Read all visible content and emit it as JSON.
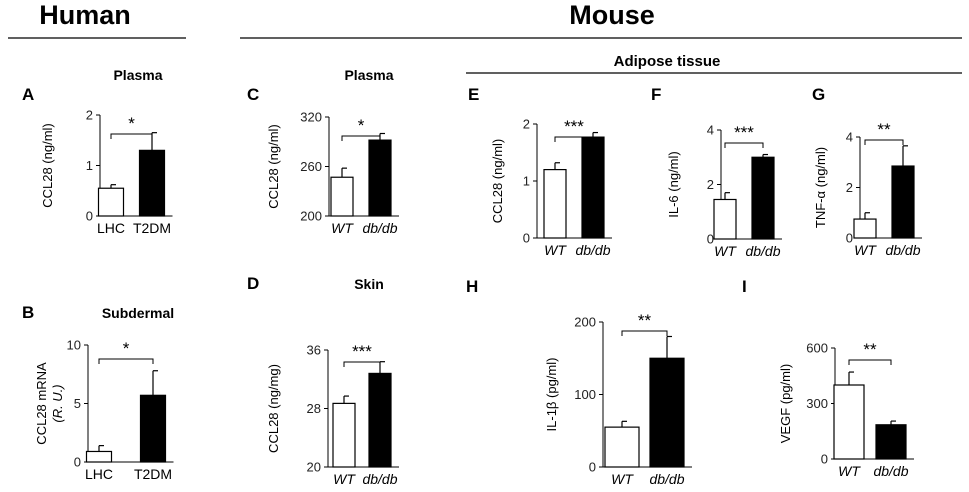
{
  "headers": {
    "left": "Human",
    "right": "Mouse",
    "sub": "Adipose tissue"
  },
  "chart_data": [
    {
      "panel": "A",
      "type": "bar",
      "title": "Plasma",
      "ylabel": "CCL28  (ng/ml)",
      "ylabel2": "",
      "categories": [
        "LHC",
        "T2DM"
      ],
      "italic_categories": false,
      "values": [
        0.55,
        1.3
      ],
      "errors": [
        0.07,
        0.35
      ],
      "ylim": [
        0,
        2
      ],
      "yticks": [
        0,
        1,
        2
      ],
      "significance": "*"
    },
    {
      "panel": "B",
      "type": "bar",
      "title": "Subdermal",
      "ylabel": "CCL28 mRNA",
      "ylabel2": "(R. U.)",
      "categories": [
        "LHC",
        "T2DM"
      ],
      "italic_categories": false,
      "values": [
        0.9,
        5.7
      ],
      "errors": [
        0.5,
        2.1
      ],
      "ylim": [
        0,
        10
      ],
      "yticks": [
        0,
        5,
        10
      ],
      "significance": "*"
    },
    {
      "panel": "C",
      "type": "bar",
      "title": "Plasma",
      "ylabel": "CCL28  (ng/ml)",
      "ylabel2": "",
      "categories": [
        "WT",
        "db/db"
      ],
      "italic_categories": true,
      "values": [
        247,
        292
      ],
      "errors": [
        11,
        8
      ],
      "ylim": [
        200,
        320
      ],
      "yticks": [
        200,
        260,
        320
      ],
      "significance": "*"
    },
    {
      "panel": "D",
      "type": "bar",
      "title": "Skin",
      "ylabel": "CCL28  (ng/mg)",
      "ylabel2": "",
      "categories": [
        "WT",
        "db/db"
      ],
      "italic_categories": true,
      "values": [
        28.7,
        32.8
      ],
      "errors": [
        1.0,
        1.6
      ],
      "ylim": [
        20,
        36
      ],
      "yticks": [
        20,
        28,
        36
      ],
      "significance": "***"
    },
    {
      "panel": "E",
      "type": "bar",
      "title": "",
      "ylabel": "CCL28  (ng/ml)",
      "ylabel2": "",
      "categories": [
        "WT",
        "db/db"
      ],
      "italic_categories": true,
      "values": [
        1.2,
        1.77
      ],
      "errors": [
        0.12,
        0.08
      ],
      "ylim": [
        0,
        2
      ],
      "yticks": [
        0,
        1,
        2
      ],
      "significance": "***"
    },
    {
      "panel": "F",
      "type": "bar",
      "title": "",
      "ylabel": "IL-6  (ng/ml)",
      "ylabel2": "",
      "categories": [
        "WT",
        "db/db"
      ],
      "italic_categories": true,
      "values": [
        1.45,
        3.0
      ],
      "errors": [
        0.25,
        0.1
      ],
      "ylim": [
        0,
        4
      ],
      "yticks": [
        0,
        2,
        4
      ],
      "significance": "***"
    },
    {
      "panel": "G",
      "type": "bar",
      "title": "",
      "ylabel": "TNF-α  (ng/ml)",
      "ylabel2": "",
      "categories": [
        "WT",
        "db/db"
      ],
      "italic_categories": true,
      "values": [
        0.75,
        2.85
      ],
      "errors": [
        0.25,
        0.8
      ],
      "ylim": [
        0,
        4
      ],
      "yticks": [
        0,
        2,
        4
      ],
      "significance": "**"
    },
    {
      "panel": "H",
      "type": "bar",
      "title": "",
      "ylabel": "IL-1β  (pg/ml)",
      "ylabel2": "",
      "categories": [
        "WT",
        "db/db"
      ],
      "italic_categories": true,
      "values": [
        55,
        150
      ],
      "errors": [
        8,
        30
      ],
      "ylim": [
        0,
        200
      ],
      "yticks": [
        0,
        100,
        200
      ],
      "significance": "**"
    },
    {
      "panel": "I",
      "type": "bar",
      "title": "",
      "ylabel": "VEGF  (pg/ml)",
      "ylabel2": "",
      "categories": [
        "WT",
        "db/db"
      ],
      "italic_categories": true,
      "values": [
        400,
        185
      ],
      "errors": [
        70,
        20
      ],
      "ylim": [
        0,
        600
      ],
      "yticks": [
        0,
        300,
        600
      ],
      "significance": "**"
    }
  ]
}
